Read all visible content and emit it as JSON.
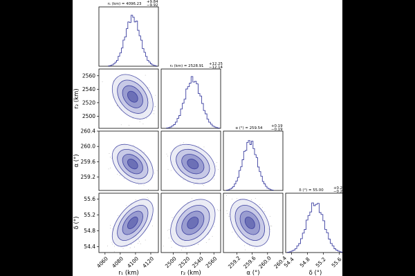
{
  "chart_data": {
    "type": "corner",
    "colors": {
      "line": "#3b3fa0",
      "points": "#333333",
      "fill_levels": [
        "#e9eaf5",
        "#c7c9e6",
        "#9a9dd0",
        "#6c70b6"
      ],
      "background": "#ffffff"
    },
    "parameters": [
      {
        "name": "r1",
        "axis_label": "r₁ (km)",
        "title": "r₁ (km) = 4096.23",
        "title_err_plus": "+9.84",
        "title_err_minus": "−9.92",
        "median": 4096.23,
        "sigma": 9.9,
        "range": [
          4052,
          4130
        ],
        "ticks": [
          4060,
          4080,
          4100,
          4120
        ],
        "tick_labels": [
          "4060",
          "4080",
          "4100",
          "4120"
        ]
      },
      {
        "name": "r2",
        "axis_label": "r₂ (km)",
        "title": "r₂ (km) = 2528.91",
        "title_err_plus": "+12.25",
        "title_err_minus": "−12.14",
        "median": 2528.91,
        "sigma": 12.2,
        "range": [
          2482,
          2570
        ],
        "ticks": [
          2500,
          2520,
          2540,
          2560
        ],
        "tick_labels": [
          "2500",
          "2520",
          "2540",
          "2560"
        ]
      },
      {
        "name": "alpha",
        "axis_label": "α (°)",
        "title": "α (°) = 259.54",
        "title_err_plus": "+0.19",
        "title_err_minus": "−0.19",
        "median": 259.54,
        "sigma": 0.19,
        "range": [
          258.85,
          260.4
        ],
        "ticks": [
          259.2,
          259.6,
          260.0,
          260.4
        ],
        "tick_labels": [
          "259.2",
          "259.6",
          "260.0",
          "260.4"
        ]
      },
      {
        "name": "delta",
        "axis_label": "δ (°)",
        "title": "δ (°) = 55.00",
        "title_err_plus": "+0.22",
        "title_err_minus": "−0.22",
        "median": 55.0,
        "sigma": 0.22,
        "range": [
          54.25,
          55.75
        ],
        "ticks": [
          54.4,
          54.8,
          55.2,
          55.6
        ],
        "tick_labels": [
          "54.4",
          "54.8",
          "55.2",
          "55.6"
        ]
      }
    ],
    "correlations": [
      {
        "pair": [
          "r1",
          "r2"
        ],
        "rho": -0.35
      },
      {
        "pair": [
          "r1",
          "alpha"
        ],
        "rho": -0.4
      },
      {
        "pair": [
          "r2",
          "alpha"
        ],
        "rho": -0.3
      },
      {
        "pair": [
          "r1",
          "delta"
        ],
        "rho": 0.55
      },
      {
        "pair": [
          "r2",
          "delta"
        ],
        "rho": 0.35
      },
      {
        "pair": [
          "alpha",
          "delta"
        ],
        "rho": -0.35
      }
    ],
    "contour_levels_sigma": [
      0.5,
      1.0,
      1.5,
      2.0
    ],
    "histogram_bins": 30
  }
}
